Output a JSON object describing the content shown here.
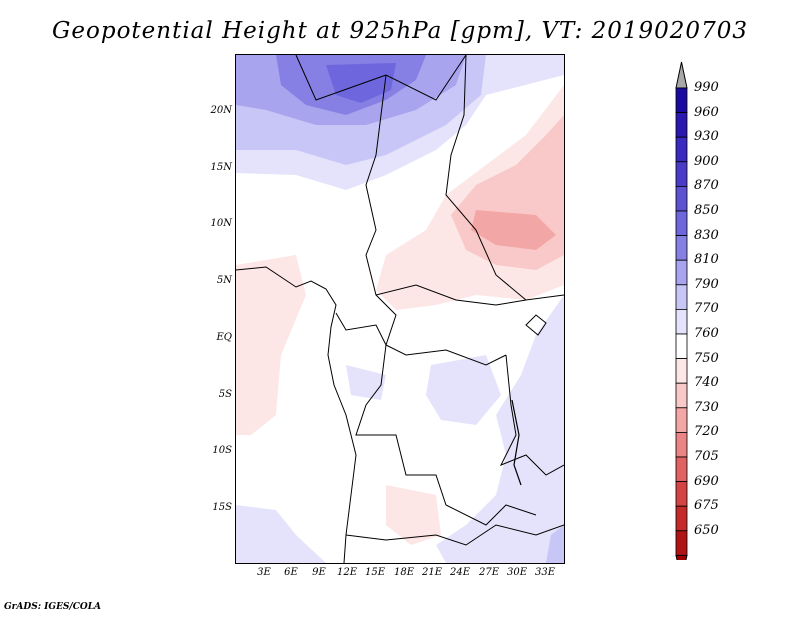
{
  "title": "Geopotential Height at 925hPa [gpm], VT: 2019020703",
  "credit": "GrADS: IGES/COLA",
  "lat_labels": [
    "20N",
    "15N",
    "10N",
    "5N",
    "EQ",
    "5S",
    "10S",
    "15S"
  ],
  "lon_labels": [
    "3E",
    "6E",
    "9E",
    "12E",
    "15E",
    "18E",
    "21E",
    "24E",
    "27E",
    "30E",
    "33E"
  ],
  "colorbar": {
    "levels": [
      "990",
      "960",
      "930",
      "900",
      "870",
      "850",
      "830",
      "810",
      "790",
      "770",
      "760",
      "750",
      "740",
      "730",
      "720",
      "705",
      "690",
      "675",
      "650"
    ],
    "colors": [
      "#1a0aa0",
      "#2a18b0",
      "#3a2ac0",
      "#4a3cc8",
      "#5c52d2",
      "#6e66dc",
      "#8680e4",
      "#a8a4ee",
      "#c8c6f6",
      "#e4e3fb",
      "#ffffff",
      "#fde6e6",
      "#f9c9c9",
      "#f3a6a6",
      "#eb8484",
      "#e06262",
      "#d44444",
      "#c42a2a",
      "#b01414",
      "#a00000"
    ],
    "top_arrow_color": "#a8a8a8",
    "bottom_arrow_color": "#a00000"
  }
}
